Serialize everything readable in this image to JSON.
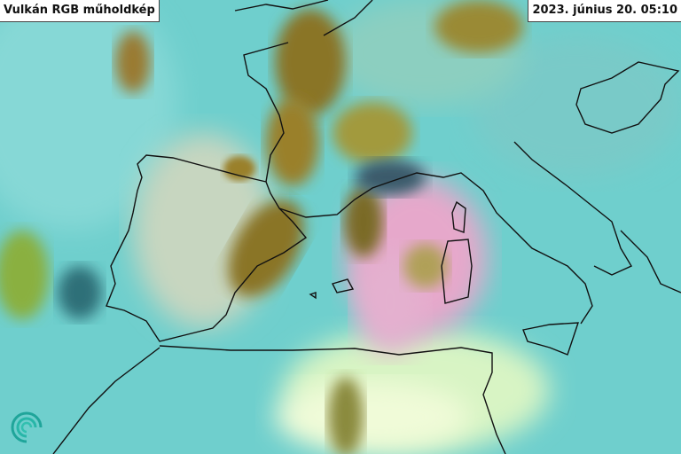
{
  "title": "Vulkán RGB műholdkép",
  "timestamp": "2023. június 20. 05:10",
  "logo": "swirl-logo",
  "colors": {
    "background": "#70d0cf",
    "cloud_brown": "#8a7528",
    "cloud_olive": "#a29a3c",
    "pink_plume": "#e7a9cc",
    "coastline": "#111111",
    "desert_light": "#e8f8c8"
  }
}
